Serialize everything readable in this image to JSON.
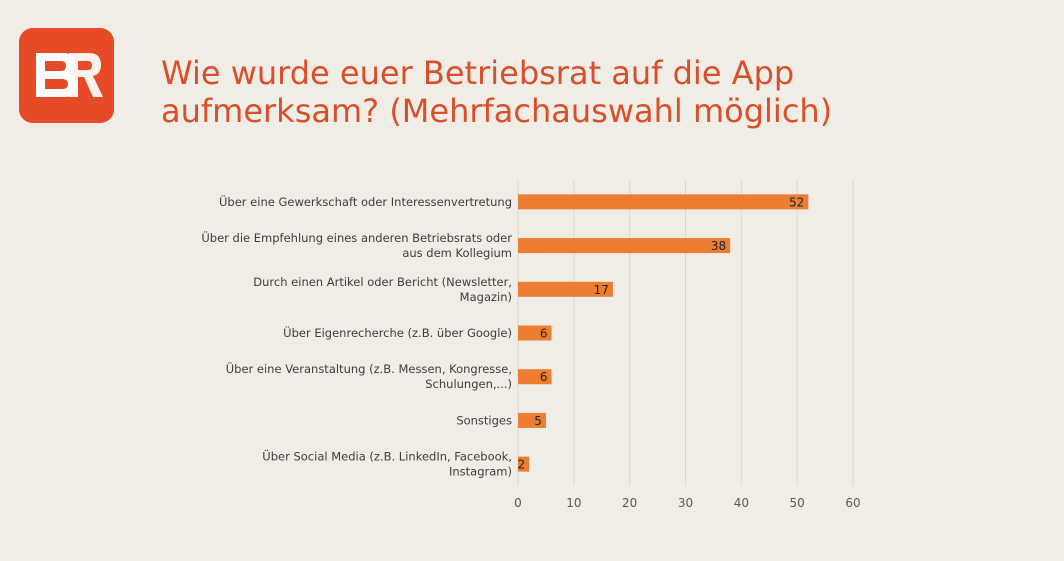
{
  "logo": {
    "text": "BR",
    "color": "#e64a27"
  },
  "title": {
    "line1": "Wie wurde euer Betriebsrat auf die App",
    "line2": "aufmerksam? (Mehrfachauswahl möglich)",
    "color": "#d8502b"
  },
  "chart_data": {
    "type": "bar",
    "orientation": "horizontal",
    "categories": [
      "Über eine Gewerkschaft oder Interessenvertretung",
      "Über die Empfehlung eines anderen Betriebsrats oder aus dem Kollegium",
      "Durch einen Artikel oder Bericht (Newsletter, Magazin)",
      "Über Eigenrecherche (z.B. über Google)",
      "Über eine Veranstaltung (z.B. Messen, Kongresse, Schulungen,...)",
      "Sonstiges",
      "Über Social Media (z.B. LinkedIn, Facebook, Instagram)"
    ],
    "values": [
      52,
      38,
      17,
      6,
      6,
      5,
      2
    ],
    "xlim": [
      0,
      60
    ],
    "xticks": [
      0,
      10,
      20,
      30,
      40,
      50,
      60
    ],
    "grid": true,
    "legend": "none",
    "bar_color": "#ed7d31"
  }
}
